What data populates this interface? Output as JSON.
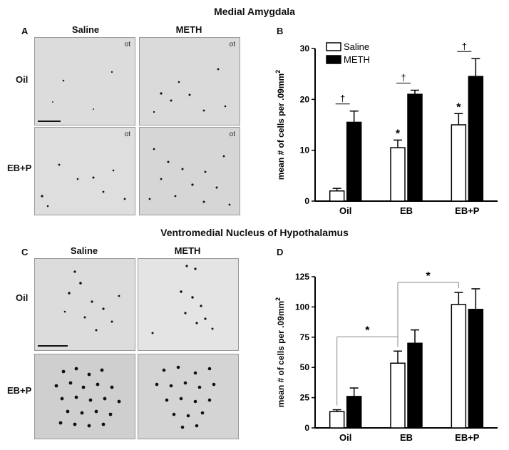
{
  "titles": {
    "top": "Medial Amygdala",
    "bottom": "Ventromedial Nucleus of Hypothalamus"
  },
  "panels": {
    "a": "A",
    "b": "B",
    "c": "C",
    "d": "D"
  },
  "micrographs": {
    "col_saline": "Saline",
    "col_meth": "METH",
    "row_oil": "Oil",
    "row_ebp": "EB+P",
    "ot_label": "ot"
  },
  "colors": {
    "saline_fill": "#ffffff",
    "meth_fill": "#000000",
    "micro_bg": "#d8d8d8"
  },
  "chart_data": [
    {
      "type": "bar",
      "panel": "B",
      "categories": [
        "Oil",
        "EB",
        "EB+P"
      ],
      "ylabel": "mean # of cells per .09mm",
      "ylabel_sup": "2",
      "ylim": [
        0,
        30
      ],
      "yticks": [
        "0",
        "10",
        "20",
        "30"
      ],
      "legend_position": "top-left",
      "series": [
        {
          "name": "Saline",
          "values": [
            2.0,
            10.5,
            15.0
          ],
          "errors": [
            0.5,
            1.5,
            2.2
          ]
        },
        {
          "name": "METH",
          "values": [
            15.5,
            21.0,
            24.5
          ],
          "errors": [
            2.2,
            0.8,
            3.5
          ]
        }
      ],
      "annotations": {
        "asterisk": "*",
        "dagger": "†",
        "asterisk_on_saline": [
          false,
          true,
          true
        ],
        "dagger_on_category": [
          true,
          true,
          true
        ]
      }
    },
    {
      "type": "bar",
      "panel": "D",
      "categories": [
        "Oil",
        "EB",
        "EB+P"
      ],
      "ylabel": "mean # of cells per .09mm",
      "ylabel_sup": "2",
      "ylim": [
        0,
        125
      ],
      "yticks": [
        "0",
        "25",
        "50",
        "75",
        "100",
        "125"
      ],
      "series": [
        {
          "name": "Saline",
          "values": [
            13.5,
            53.5,
            102.0
          ],
          "errors": [
            1.5,
            10.0,
            10.0
          ]
        },
        {
          "name": "METH",
          "values": [
            26.0,
            70.0,
            98.0
          ],
          "errors": [
            7.0,
            11.0,
            17.0
          ]
        }
      ],
      "annotations": {
        "asterisk": "*",
        "brackets": [
          {
            "from": "Oil",
            "to": "EB"
          },
          {
            "from": "EB",
            "to": "EB+P"
          }
        ]
      }
    }
  ]
}
